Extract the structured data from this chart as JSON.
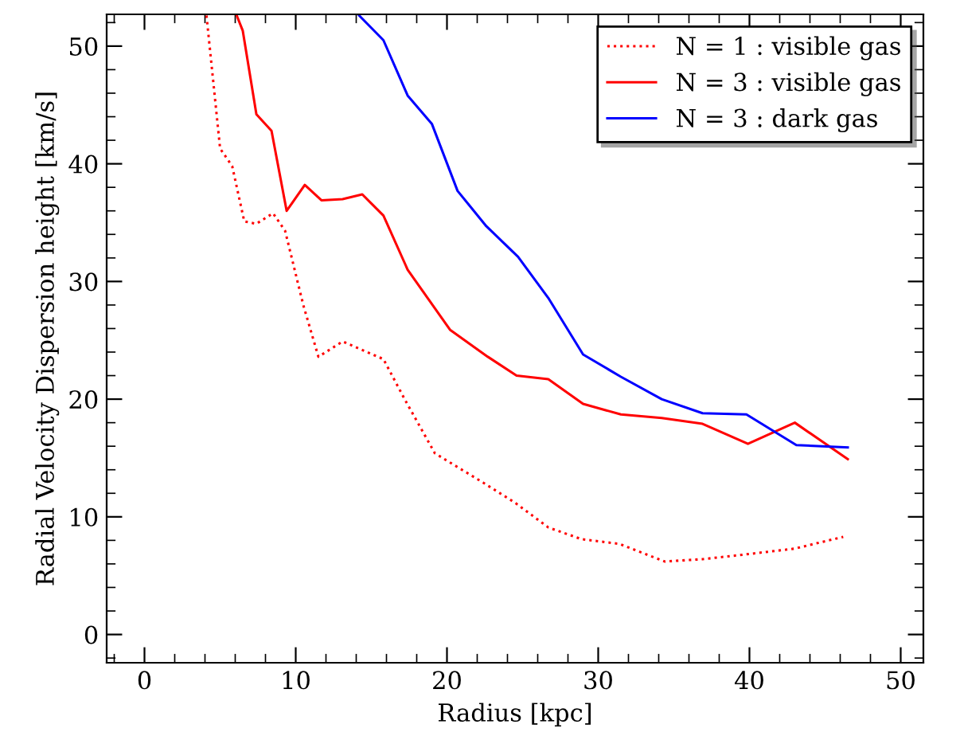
{
  "chart_data": {
    "type": "line",
    "xlabel": "Radius [kpc]",
    "ylabel": "Radial Velocity Dispersion height [km/s]",
    "xlim": [
      -2.5,
      51.5
    ],
    "ylim": [
      -2.4,
      52.7
    ],
    "xticks": [
      0,
      10,
      20,
      30,
      40,
      50
    ],
    "yticks": [
      0,
      10,
      20,
      30,
      40,
      50
    ],
    "grid": false,
    "legend": "top right",
    "marker": "none",
    "series": [
      {
        "name": "N = 1 : visible gas",
        "color": "#ff0000",
        "line_style": "dotted",
        "x": [
          4.1,
          5.0,
          5.8,
          6.6,
          7.4,
          8.5,
          9.3,
          10.5,
          11.5,
          13.1,
          15.8,
          17.2,
          19.2,
          22.4,
          24.5,
          26.7,
          28.9,
          31.4,
          34.4,
          36.9,
          39.7,
          43.0,
          46.2
        ],
        "values": [
          52.6,
          41.3,
          39.8,
          35.1,
          34.9,
          35.8,
          34.3,
          28.0,
          23.6,
          24.9,
          23.4,
          20.0,
          15.4,
          12.9,
          11.2,
          9.1,
          8.1,
          7.7,
          6.2,
          6.4,
          6.8,
          7.3,
          8.3
        ]
      },
      {
        "name": "N = 3 : visible gas",
        "color": "#ff0000",
        "line_style": "solid",
        "x": [
          6.1,
          6.5,
          7.4,
          8.4,
          9.4,
          10.6,
          11.7,
          13.1,
          14.4,
          15.8,
          17.4,
          20.2,
          22.7,
          24.6,
          26.7,
          29.0,
          31.5,
          34.2,
          36.9,
          39.9,
          43.0,
          46.5
        ],
        "values": [
          52.6,
          51.3,
          44.2,
          42.8,
          36.0,
          38.2,
          36.9,
          37.0,
          37.4,
          35.6,
          31.0,
          25.9,
          23.6,
          22.0,
          21.7,
          19.6,
          18.7,
          18.4,
          17.9,
          16.2,
          18.0,
          14.9
        ]
      },
      {
        "name": "N = 3 : dark gas",
        "color": "#0000ff",
        "line_style": "solid",
        "x": [
          14.2,
          15.8,
          17.4,
          19.0,
          20.7,
          22.6,
          24.7,
          26.7,
          29.0,
          31.5,
          34.2,
          36.9,
          39.8,
          43.1,
          46.5
        ],
        "values": [
          52.6,
          50.5,
          45.8,
          43.4,
          37.7,
          34.7,
          32.1,
          28.6,
          23.8,
          21.9,
          20.0,
          18.8,
          18.7,
          16.1,
          15.9
        ]
      }
    ]
  }
}
